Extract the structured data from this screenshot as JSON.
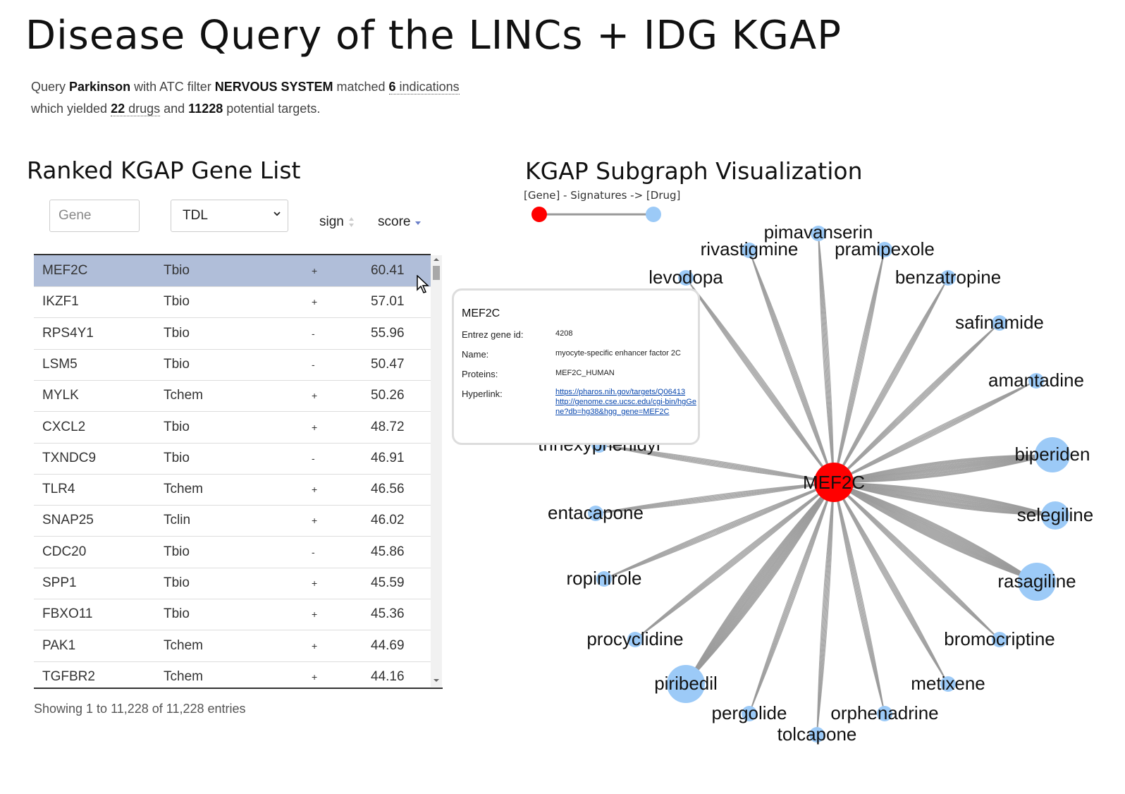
{
  "page": {
    "title": "Disease Query of the LINCs + IDG KGAP"
  },
  "summary": {
    "t1": "Query ",
    "query": "Parkinson",
    "t2": " with ATC filter ",
    "atc_filter": "NERVOUS SYSTEM",
    "t3": " matched ",
    "indications_count": "6",
    "indications_label": " indications",
    "t4": "which yielded ",
    "drugs_count": "22",
    "drugs_label": " drugs",
    "t5": " and ",
    "targets_count": "11228",
    "t6": " potential targets."
  },
  "gene_list": {
    "title": "Ranked KGAP Gene List",
    "gene_placeholder": "Gene",
    "tdl_select_value": "TDL",
    "sign_header": "sign",
    "score_header": "score",
    "rows": [
      {
        "gene": "MEF2C",
        "tdl": "Tbio",
        "sign": "+",
        "score": "60.41"
      },
      {
        "gene": "IKZF1",
        "tdl": "Tbio",
        "sign": "+",
        "score": "57.01"
      },
      {
        "gene": "RPS4Y1",
        "tdl": "Tbio",
        "sign": "-",
        "score": "55.96"
      },
      {
        "gene": "LSM5",
        "tdl": "Tbio",
        "sign": "-",
        "score": "50.47"
      },
      {
        "gene": "MYLK",
        "tdl": "Tchem",
        "sign": "+",
        "score": "50.26"
      },
      {
        "gene": "CXCL2",
        "tdl": "Tbio",
        "sign": "+",
        "score": "48.72"
      },
      {
        "gene": "TXNDC9",
        "tdl": "Tbio",
        "sign": "-",
        "score": "46.91"
      },
      {
        "gene": "TLR4",
        "tdl": "Tchem",
        "sign": "+",
        "score": "46.56"
      },
      {
        "gene": "SNAP25",
        "tdl": "Tclin",
        "sign": "+",
        "score": "46.02"
      },
      {
        "gene": "CDC20",
        "tdl": "Tbio",
        "sign": "-",
        "score": "45.86"
      },
      {
        "gene": "SPP1",
        "tdl": "Tbio",
        "sign": "+",
        "score": "45.59"
      },
      {
        "gene": "FBXO11",
        "tdl": "Tbio",
        "sign": "+",
        "score": "45.36"
      },
      {
        "gene": "PAK1",
        "tdl": "Tchem",
        "sign": "+",
        "score": "44.69"
      },
      {
        "gene": "TGFBR2",
        "tdl": "Tchem",
        "sign": "+",
        "score": "44.16"
      }
    ],
    "info": "Showing 1 to 11,228 of 11,228 entries"
  },
  "subgraph": {
    "title": "KGAP Subgraph Visualization",
    "legend_label": "[Gene] - Signatures -> [Drug]",
    "gene_color": "#ff0000",
    "drug_color": "#9ccaf7",
    "edge_color": "#999999",
    "center": "MEF2C",
    "drugs": [
      {
        "name": "pimavanserin",
        "weight": 1
      },
      {
        "name": "rivastigmine",
        "weight": 1
      },
      {
        "name": "pramipexole",
        "weight": 1
      },
      {
        "name": "levodopa",
        "weight": 1
      },
      {
        "name": "benzatropine",
        "weight": 1
      },
      {
        "name": "safinamide",
        "weight": 1
      },
      {
        "name": "amantadine",
        "weight": 1
      },
      {
        "name": "biperiden",
        "weight": 3
      },
      {
        "name": "selegiline",
        "weight": 2
      },
      {
        "name": "rasagiline",
        "weight": 4
      },
      {
        "name": "bromocriptine",
        "weight": 1
      },
      {
        "name": "metixene",
        "weight": 1
      },
      {
        "name": "orphenadrine",
        "weight": 1
      },
      {
        "name": "tolcapone",
        "weight": 1
      },
      {
        "name": "pergolide",
        "weight": 1
      },
      {
        "name": "piribedil",
        "weight": 4
      },
      {
        "name": "procyclidine",
        "weight": 1
      },
      {
        "name": "ropinirole",
        "weight": 1
      },
      {
        "name": "entacapone",
        "weight": 1
      },
      {
        "name": "trihexyphenidyl",
        "weight": 1
      }
    ]
  },
  "tooltip": {
    "gene": "MEF2C",
    "entrez_label": "Entrez gene id:",
    "entrez_value": "4208",
    "name_label": "Name:",
    "name_value": "myocyte-specific enhancer factor 2C",
    "proteins_label": "Proteins:",
    "proteins_value": "MEF2C_HUMAN",
    "hyperlink_label": "Hyperlink:",
    "link1": "https://pharos.nih.gov/targets/Q06413",
    "link2": "http://genome.cse.ucsc.edu/cgi-bin/hgGene?db=hg38&hgg_gene=MEF2C"
  }
}
